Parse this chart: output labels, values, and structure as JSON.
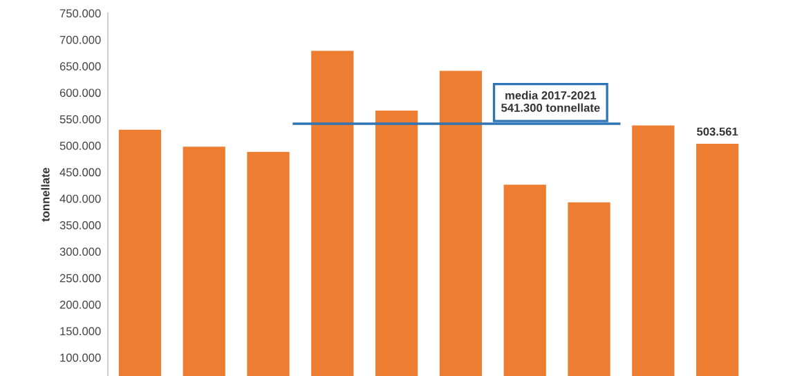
{
  "chart_data": {
    "type": "bar",
    "ylabel": "tonnellate",
    "categories": [
      null,
      null,
      null,
      null,
      null,
      null,
      null,
      null,
      null,
      null
    ],
    "values": [
      530000,
      498000,
      488000,
      679000,
      566000,
      641000,
      426000,
      393000,
      538000,
      503561
    ],
    "value_labels": [
      null,
      null,
      null,
      null,
      null,
      null,
      null,
      null,
      null,
      "503.561"
    ],
    "color": "#ed7d31",
    "ylim": [
      65000,
      750000
    ],
    "yticks": [
      {
        "value": 100000,
        "label": "100.000"
      },
      {
        "value": 150000,
        "label": "150.000"
      },
      {
        "value": 200000,
        "label": "200.000"
      },
      {
        "value": 250000,
        "label": "250.000"
      },
      {
        "value": 300000,
        "label": "300.000"
      },
      {
        "value": 350000,
        "label": "350.000"
      },
      {
        "value": 400000,
        "label": "400.000"
      },
      {
        "value": 450000,
        "label": "450.000"
      },
      {
        "value": 500000,
        "label": "500.000"
      },
      {
        "value": 550000,
        "label": "550.000"
      },
      {
        "value": 600000,
        "label": "600.000"
      },
      {
        "value": 650000,
        "label": "650.000"
      },
      {
        "value": 700000,
        "label": "700.000"
      },
      {
        "value": 750000,
        "label": "750.000"
      }
    ],
    "ref_lines": [
      {
        "axis": "y",
        "value": 541300,
        "label": "media 2017-2021\n541.300 tonnellate",
        "color": "#2e75b6"
      }
    ],
    "grid": false,
    "legend": false
  }
}
